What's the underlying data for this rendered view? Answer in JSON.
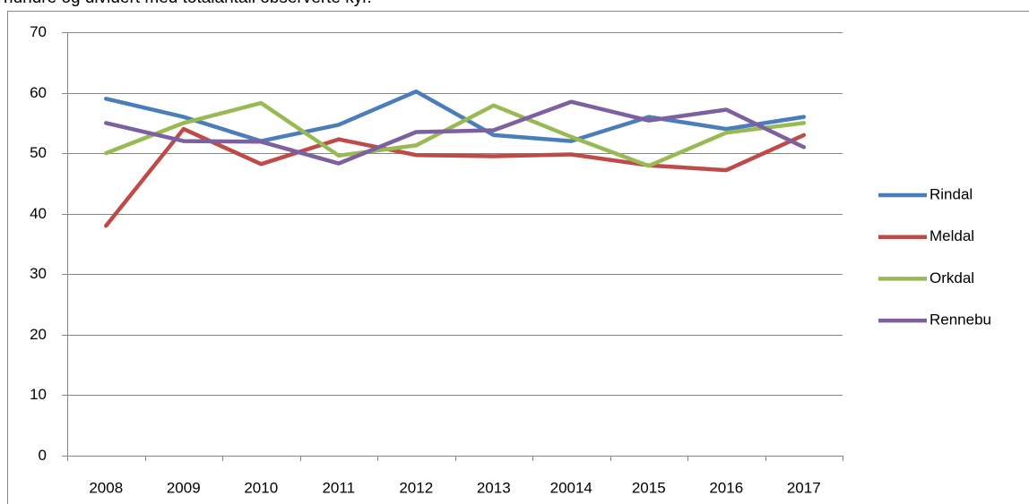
{
  "document_text": "hundre og dividert med totalantall observerte kyr.",
  "chart_data": {
    "type": "line",
    "categories": [
      "2008",
      "2009",
      "2010",
      "2011",
      "2012",
      "2013",
      "20014",
      "2015",
      "2016",
      "2017"
    ],
    "series": [
      {
        "name": "Rindal",
        "color": "#4a7ebb",
        "values": [
          59,
          56,
          52,
          54.7,
          60.2,
          53,
          52,
          56,
          54,
          56
        ]
      },
      {
        "name": "Meldal",
        "color": "#be4b48",
        "values": [
          38,
          54,
          48.2,
          52.3,
          49.7,
          49.5,
          49.8,
          48,
          47.2,
          53
        ]
      },
      {
        "name": "Orkdal",
        "color": "#98b954",
        "values": [
          50,
          55,
          58.3,
          49.6,
          51.3,
          57.9,
          52.7,
          47.9,
          53.4,
          55
        ]
      },
      {
        "name": "Rennebu",
        "color": "#7d60a0",
        "values": [
          55,
          52,
          51.9,
          48.3,
          53.5,
          53.8,
          58.5,
          55.4,
          57.2,
          51
        ]
      }
    ],
    "ylim": [
      0,
      70
    ],
    "yticks": [
      0,
      10,
      20,
      30,
      40,
      50,
      60,
      70
    ],
    "grid": true,
    "legend": "right"
  }
}
